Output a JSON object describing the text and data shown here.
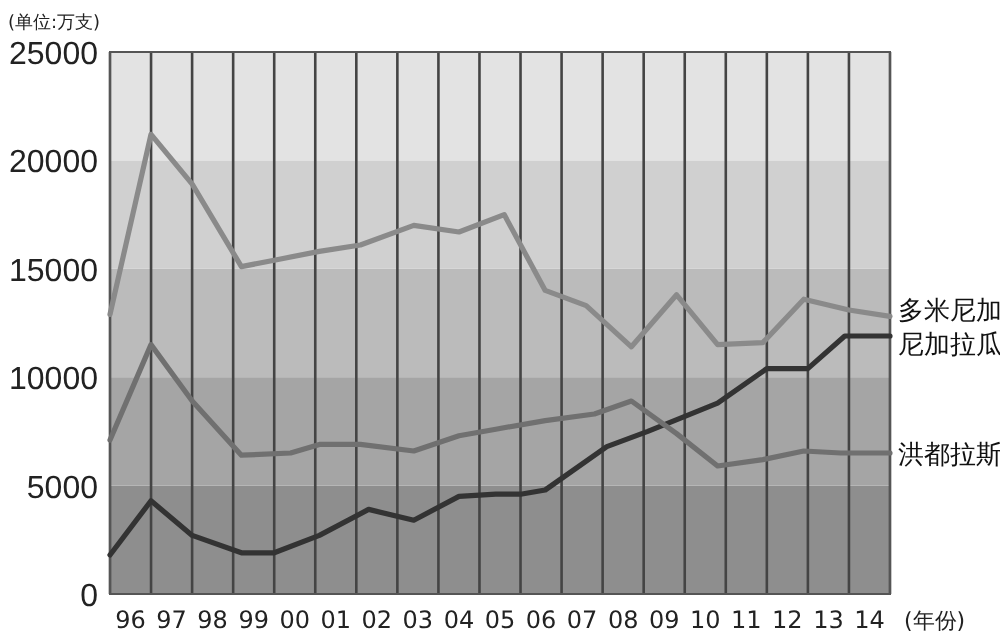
{
  "chart_data": {
    "type": "line",
    "ylabel": "(单位:万支)",
    "xlabel": "(年份)",
    "xlim": [
      1995.5,
      2014.5
    ],
    "ylim": [
      0,
      25000
    ],
    "yticks": [
      0,
      5000,
      10000,
      15000,
      20000,
      25000
    ],
    "xticks": [
      {
        "value": 1995.5,
        "label": null
      },
      {
        "value": 1996,
        "label": "96"
      },
      {
        "value": 1996.5,
        "label": null
      },
      {
        "value": 1997,
        "label": "97"
      },
      {
        "value": 1997.5,
        "label": null
      },
      {
        "value": 1998,
        "label": "98"
      },
      {
        "value": 1998.5,
        "label": null
      },
      {
        "value": 1999,
        "label": "99"
      },
      {
        "value": 1999.5,
        "label": null
      },
      {
        "value": 2000,
        "label": "00"
      },
      {
        "value": 2000.5,
        "label": null
      },
      {
        "value": 2001,
        "label": "01"
      },
      {
        "value": 2001.5,
        "label": null
      },
      {
        "value": 2002,
        "label": "02"
      },
      {
        "value": 2002.5,
        "label": null
      },
      {
        "value": 2003,
        "label": "03"
      },
      {
        "value": 2003.5,
        "label": null
      },
      {
        "value": 2004,
        "label": "04"
      },
      {
        "value": 2004.5,
        "label": null
      },
      {
        "value": 2005,
        "label": "05"
      },
      {
        "value": 2005.5,
        "label": null
      },
      {
        "value": 2006,
        "label": "06"
      },
      {
        "value": 2006.5,
        "label": null
      },
      {
        "value": 2007,
        "label": "07"
      },
      {
        "value": 2007.5,
        "label": null
      },
      {
        "value": 2008,
        "label": "08"
      },
      {
        "value": 2008.5,
        "label": null
      },
      {
        "value": 2009,
        "label": "09"
      },
      {
        "value": 2009.5,
        "label": null
      },
      {
        "value": 2010,
        "label": "10"
      },
      {
        "value": 2010.5,
        "label": null
      },
      {
        "value": 2011,
        "label": "11"
      },
      {
        "value": 2011.5,
        "label": null
      },
      {
        "value": 2012,
        "label": "12"
      },
      {
        "value": 2012.5,
        "label": null
      },
      {
        "value": 2013,
        "label": "13"
      },
      {
        "value": 2013.5,
        "label": null
      },
      {
        "value": 2014,
        "label": "14"
      },
      {
        "value": 2014.5,
        "label": null
      }
    ],
    "grid": "x",
    "legend": false,
    "marker": "none",
    "line_style": "solid",
    "bands": [
      {
        "axis": "y",
        "from": 0,
        "to": 5000,
        "color": "#8e8e8e"
      },
      {
        "axis": "y",
        "from": 5000,
        "to": 10000,
        "color": "#a5a5a5"
      },
      {
        "axis": "y",
        "from": 10000,
        "to": 15000,
        "color": "#bbbbbb"
      },
      {
        "axis": "y",
        "from": 15000,
        "to": 20000,
        "color": "#d0d0d0"
      },
      {
        "axis": "y",
        "from": 20000,
        "to": 25000,
        "color": "#e3e3e3"
      }
    ],
    "series": [
      {
        "name": "多米尼加",
        "color": "#8a8a8a",
        "x": [
          1995.5,
          1996.5,
          1997.5,
          1998.7,
          1999.5,
          2000.6,
          2001.6,
          2002.9,
          2004.0,
          2005.1,
          2006.1,
          2007.1,
          2008.2,
          2009.3,
          2010.3,
          2011.4,
          2012.4,
          2013.5,
          2014.5
        ],
        "values": [
          12900,
          21200,
          18900,
          15100,
          15400,
          15800,
          16100,
          17000,
          16700,
          17500,
          14000,
          13300,
          11400,
          13800,
          11500,
          11600,
          13600,
          13100,
          12800
        ]
      },
      {
        "name": "尼加拉瓜",
        "color": "#333333",
        "x": [
          1995.5,
          1996.5,
          1997.5,
          1998.7,
          1999.5,
          2000.6,
          2001.8,
          2002.9,
          2004.0,
          2004.9,
          2005.5,
          2006.1,
          2007.6,
          2008.6,
          2010.3,
          2011.5,
          2012.5,
          2013.4,
          2014.5
        ],
        "values": [
          1800,
          4300,
          2700,
          1900,
          1900,
          2700,
          3900,
          3400,
          4500,
          4600,
          4600,
          4800,
          6800,
          7500,
          8800,
          10400,
          10400,
          11900,
          11900
        ]
      },
      {
        "name": "洪都拉斯",
        "color": "#707070",
        "x": [
          1995.5,
          1996.5,
          1997.5,
          1998.7,
          1999.9,
          2000.6,
          2001.6,
          2002.9,
          2004.0,
          2004.9,
          2006.1,
          2007.3,
          2008.2,
          2009.3,
          2010.3,
          2011.4,
          2012.4,
          2013.3,
          2014.5
        ],
        "values": [
          7100,
          11500,
          8900,
          6400,
          6500,
          6900,
          6900,
          6600,
          7300,
          7600,
          8000,
          8300,
          8900,
          7400,
          5900,
          6200,
          6600,
          6500,
          6500
        ]
      }
    ]
  }
}
